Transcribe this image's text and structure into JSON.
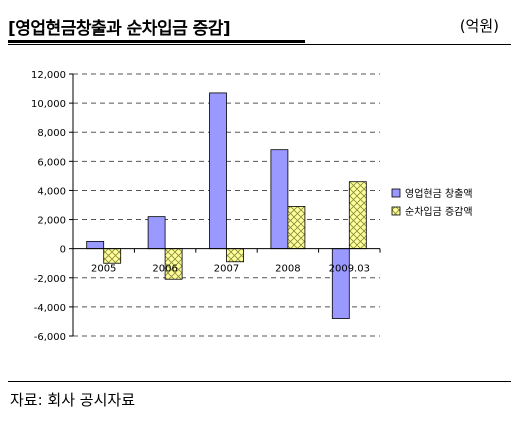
{
  "header": {
    "title": "[영업현금창출과 순차입금 증감]",
    "unit": "(억원)"
  },
  "footer": {
    "source": "자료: 회사 공시자료"
  },
  "colors": {
    "series1_fill": "#9999ff",
    "series2_fill": "#ffff99",
    "hatch": "#8a8a40",
    "grid": "#555555"
  },
  "chart_data": {
    "type": "bar",
    "categories": [
      "2005",
      "2006",
      "2007",
      "2008",
      "2009.03"
    ],
    "series": [
      {
        "name": "영업현금 창출액",
        "values": [
          500,
          2200,
          10700,
          6800,
          -4800
        ]
      },
      {
        "name": "순차입금 증감액",
        "values": [
          -1000,
          -2100,
          -900,
          2900,
          4600
        ]
      }
    ],
    "ylim": [
      -6000,
      12000
    ],
    "yticks": [
      -6000,
      -4000,
      -2000,
      0,
      2000,
      4000,
      6000,
      8000,
      10000,
      12000
    ],
    "ytick_labels": [
      "-6,000",
      "-4,000",
      "-2,000",
      "0",
      "2,000",
      "4,000",
      "6,000",
      "8,000",
      "10,000",
      "12,000"
    ],
    "grid": true,
    "legend_position": "right",
    "title": "",
    "xlabel": "",
    "ylabel": ""
  }
}
